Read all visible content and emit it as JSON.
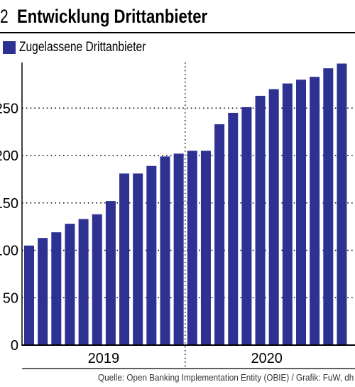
{
  "header": {
    "figure_number": "2",
    "title": "Entwicklung Drittanbieter"
  },
  "legend": {
    "label": "Zugelassene Drittanbieter",
    "color": "#2d3192"
  },
  "chart_data": {
    "type": "bar",
    "title": "Entwicklung Drittanbieter",
    "series": [
      {
        "name": "Zugelassene Drittanbieter",
        "values": [
          105,
          113,
          119,
          128,
          133,
          138,
          152,
          181,
          181,
          189,
          199,
          202,
          205,
          205,
          233,
          245,
          251,
          263,
          270,
          276,
          280,
          283,
          292,
          297
        ]
      }
    ],
    "year_groups": [
      {
        "label": "2019",
        "count": 12
      },
      {
        "label": "2020",
        "count": 12
      }
    ],
    "y_ticks": [
      0,
      50,
      100,
      150,
      200,
      250
    ],
    "ylim": [
      0,
      300
    ],
    "xlabel": "",
    "ylabel": "",
    "grid": "horizontal dotted",
    "legend_position": "top-left",
    "bar_color": "#2d3192"
  },
  "source": "Quelle: Open Banking Implementation Entity (OBIE) / Grafik: FuW, dh"
}
